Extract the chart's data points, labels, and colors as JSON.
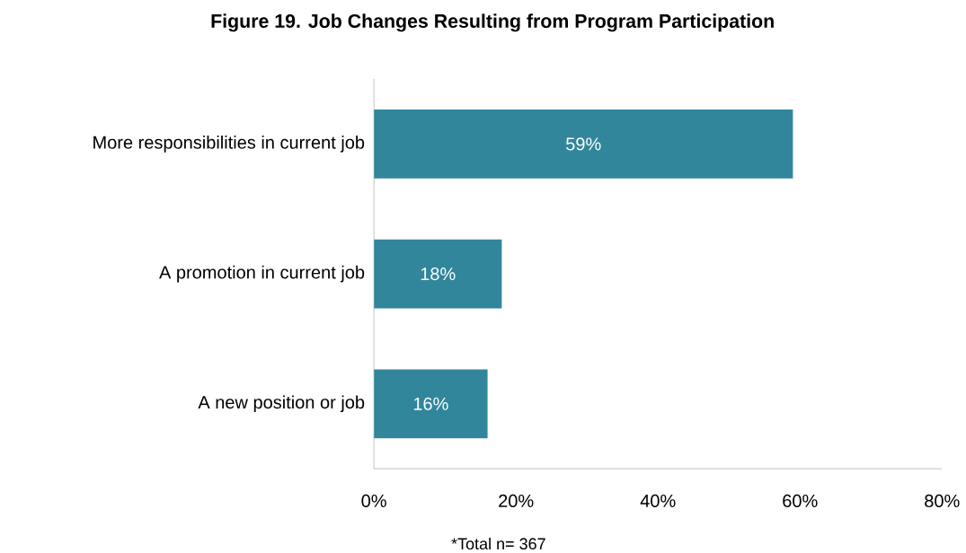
{
  "chart_data": {
    "type": "bar",
    "orientation": "horizontal",
    "title": "Figure 19. Job Changes Resulting from Program Participation",
    "categories": [
      "More responsibilities in current job",
      "A promotion in current job",
      "A new position or job"
    ],
    "values": [
      59,
      18,
      16
    ],
    "color": "#31869b",
    "value_labels": [
      "59%",
      "18%",
      "16%"
    ],
    "xlim": [
      0,
      80
    ],
    "xticks": [
      {
        "value": 0,
        "label": "0%"
      },
      {
        "value": 20,
        "label": "20%"
      },
      {
        "value": 40,
        "label": "40%"
      },
      {
        "value": 60,
        "label": "60%"
      },
      {
        "value": 80,
        "label": "80%"
      }
    ],
    "annotations": [
      "*Total n= 367"
    ]
  }
}
